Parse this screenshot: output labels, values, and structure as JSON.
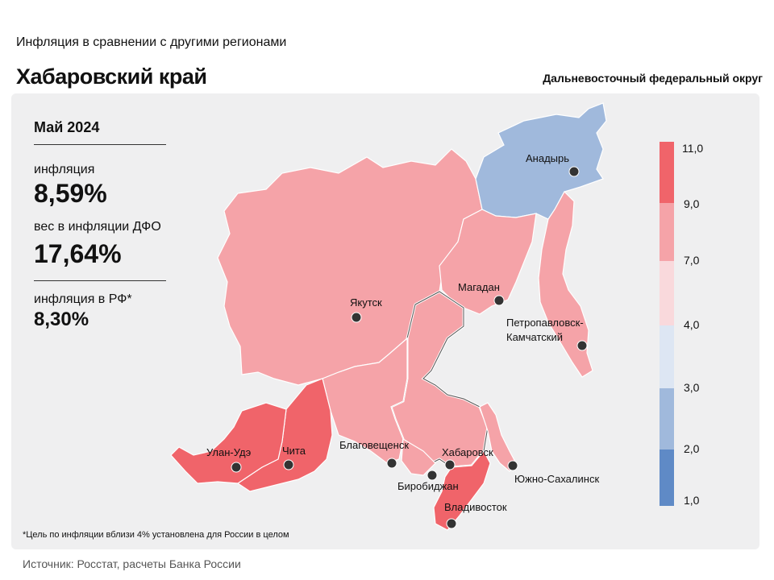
{
  "header": {
    "subtitle": "Инфляция в сравнении с другими регионами",
    "title": "Хабаровский край",
    "district": "Дальневосточный федеральный округ"
  },
  "info": {
    "period": "Май 2024",
    "inflation_label": "инфляция",
    "inflation_value": "8,59%",
    "weight_label": "вес в инфляции ДФО",
    "weight_value": "17,64%",
    "rf_label": "инфляция в РФ*",
    "rf_value": "8,30%"
  },
  "cities": [
    {
      "name": "Анадырь"
    },
    {
      "name": "Якутск"
    },
    {
      "name": "Магадан"
    },
    {
      "name": "Петропавловск-Камчатский"
    },
    {
      "name": "Улан-Удэ"
    },
    {
      "name": "Чита"
    },
    {
      "name": "Благовещенск"
    },
    {
      "name": "Хабаровск"
    },
    {
      "name": "Биробиджан"
    },
    {
      "name": "Южно-Сахалинск"
    },
    {
      "name": "Владивосток"
    }
  ],
  "legend": {
    "ticks": [
      "11,0",
      "9,0",
      "7,0",
      "4,0",
      "3,0",
      "2,0",
      "1,0"
    ],
    "colors": [
      "#f0646a",
      "#f5a3a8",
      "#f9d9dc",
      "#dde6f3",
      "#a0b9dc",
      "#5f8ac6"
    ]
  },
  "colors": {
    "high": "#f0646a",
    "mid_high": "#f5a3a8",
    "low": "#a0b9dc"
  },
  "footnote": "*Цель по инфляции вблизи 4% установлена для России в целом",
  "source": "Источник: Росстат, расчеты  Банка  России"
}
